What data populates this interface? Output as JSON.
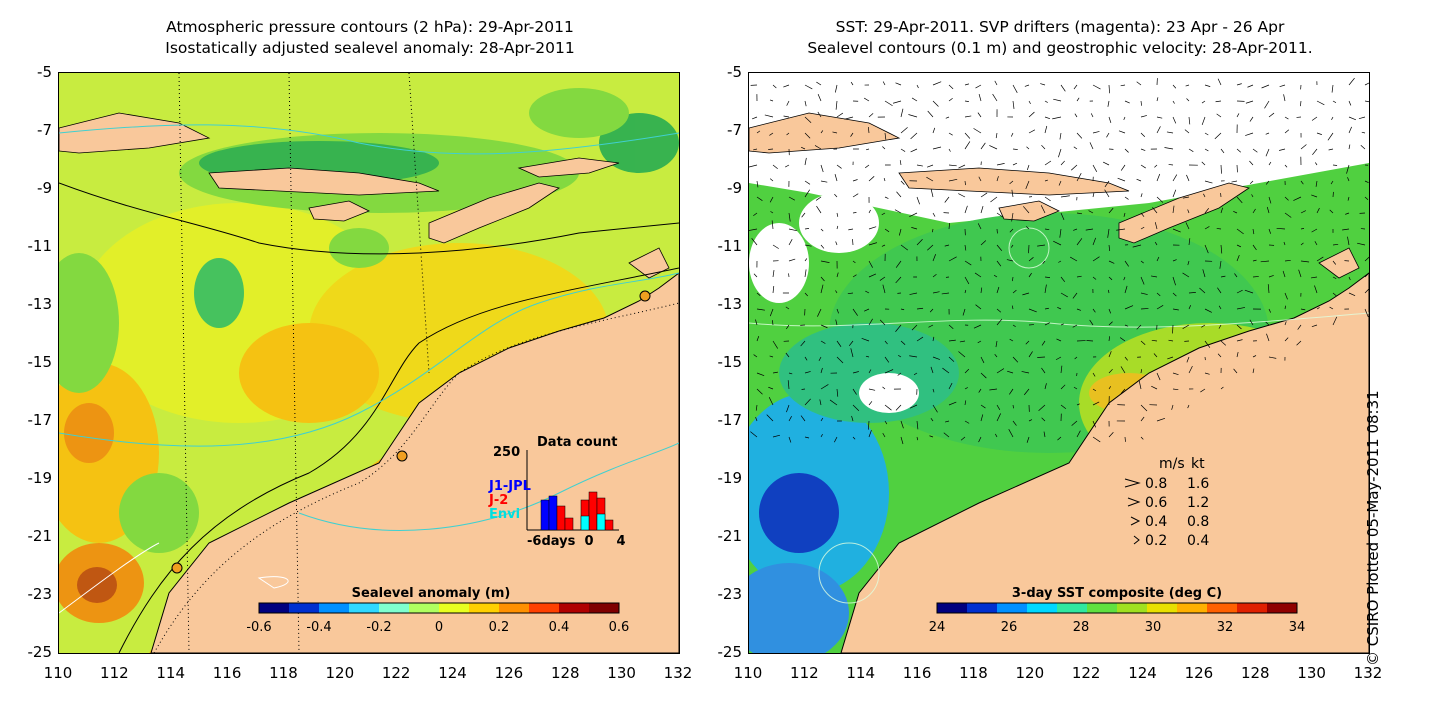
{
  "left_panel": {
    "title_line1": "Atmospheric pressure contours (2 hPa): 29-Apr-2011",
    "title_line2": "Isostatically adjusted sealevel anomaly: 28-Apr-2011",
    "colorbar": {
      "title": "Sealevel anomaly (m)",
      "ticks": [
        "-0.6",
        "-0.4",
        "-0.2",
        "0",
        "0.2",
        "0.4",
        "0.6"
      ],
      "colors": [
        "#00007f",
        "#0030d0",
        "#0090ff",
        "#30d8ff",
        "#7fffcf",
        "#b0ff60",
        "#e8ff20",
        "#ffd000",
        "#ff9000",
        "#ff4000",
        "#b00000",
        "#7f0000"
      ]
    },
    "data_count": {
      "title": "Data count",
      "max_label": "250",
      "series": [
        {
          "name": "J1-JPL",
          "color": "#0000ff"
        },
        {
          "name": "J-2",
          "color": "#ff0000"
        },
        {
          "name": "Envi",
          "color": "#00ffff"
        }
      ],
      "x_labels": [
        "-6days",
        "0",
        "4"
      ]
    }
  },
  "right_panel": {
    "title_line1": "SST: 29-Apr-2011. SVP drifters (magenta): 23 Apr - 26 Apr",
    "title_line2": "Sealevel contours (0.1 m) and geostrophic velocity: 28-Apr-2011.",
    "colorbar": {
      "title": "3-day SST composite (deg C)",
      "ticks": [
        "24",
        "26",
        "28",
        "30",
        "32",
        "34"
      ],
      "colors": [
        "#00007f",
        "#0030d0",
        "#0090ff",
        "#00d8ff",
        "#30e8a0",
        "#60e040",
        "#a0e020",
        "#e8e000",
        "#ffb000",
        "#ff6000",
        "#e02000",
        "#8f0000"
      ]
    },
    "velocity_legend": {
      "header_ms": "m/s",
      "header_kt": "kt",
      "rows": [
        {
          "ms": "0.8",
          "kt": "1.6"
        },
        {
          "ms": "0.6",
          "kt": "1.2"
        },
        {
          "ms": "0.4",
          "kt": "0.8"
        },
        {
          "ms": "0.2",
          "kt": "0.4"
        }
      ]
    }
  },
  "axes": {
    "y_ticks": [
      "-5",
      "-7",
      "-9",
      "-11",
      "-13",
      "-15",
      "-17",
      "-19",
      "-21",
      "-23",
      "-25"
    ],
    "x_ticks": [
      "110",
      "112",
      "114",
      "116",
      "118",
      "120",
      "122",
      "124",
      "126",
      "128",
      "130",
      "132"
    ]
  },
  "credit": "© CSIRO Plotted 05-May-2011 08:31",
  "colors": {
    "land": "#f9c89b",
    "ocean_base": "#c8ec40",
    "contour": "#000000",
    "isobath": "#40d0d0"
  }
}
